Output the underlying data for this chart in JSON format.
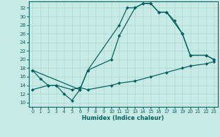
{
  "xlabel": "Humidex (Indice chaleur)",
  "xlim": [
    -0.5,
    23.5
  ],
  "ylim": [
    9,
    33.5
  ],
  "xticks": [
    0,
    1,
    2,
    3,
    4,
    5,
    6,
    7,
    8,
    9,
    10,
    11,
    12,
    13,
    14,
    15,
    16,
    17,
    18,
    19,
    20,
    21,
    22,
    23
  ],
  "yticks": [
    10,
    12,
    14,
    16,
    18,
    20,
    22,
    24,
    26,
    28,
    30,
    32
  ],
  "background_color": "#c8eae5",
  "grid_color": "#a8d8d0",
  "line_color": "#006060",
  "line1_x": [
    0,
    1,
    2,
    3,
    4,
    5,
    6,
    7,
    11,
    12,
    13,
    14,
    15,
    16,
    17,
    18,
    19,
    20,
    22,
    23
  ],
  "line1_y": [
    17.5,
    15.5,
    14,
    14,
    12,
    10.5,
    13,
    17.5,
    28,
    32,
    32,
    33,
    33,
    31,
    31,
    29,
    26,
    21,
    21,
    20
  ],
  "line2_x": [
    0,
    6,
    7,
    10,
    11,
    13,
    14,
    15,
    16,
    17,
    19,
    20,
    22,
    23
  ],
  "line2_y": [
    17.5,
    13,
    17.5,
    20,
    25.5,
    32,
    33,
    33,
    31,
    31,
    26,
    21,
    21,
    20
  ],
  "line3_x": [
    0,
    2,
    3,
    5,
    6,
    7,
    10,
    11,
    13,
    15,
    17,
    19,
    20,
    22,
    23
  ],
  "line3_y": [
    13,
    14,
    14,
    13,
    13.5,
    13,
    14,
    14.5,
    15,
    16,
    17,
    18,
    18.5,
    19,
    19.5
  ]
}
